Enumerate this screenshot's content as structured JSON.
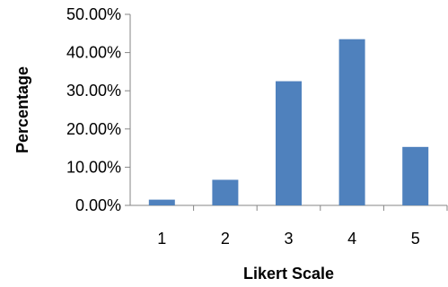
{
  "chart_data": {
    "type": "bar",
    "title": "",
    "xlabel": "Likert Scale",
    "ylabel": "Percentage",
    "categories": [
      "1",
      "2",
      "3",
      "4",
      "5"
    ],
    "values": [
      1.5,
      6.7,
      32.5,
      43.5,
      15.3
    ],
    "ylim": [
      0,
      50
    ],
    "yticks": [
      "0.00%",
      "10.00%",
      "20.00%",
      "30.00%",
      "40.00%",
      "50.00%"
    ],
    "grid": false,
    "legend": "none",
    "bar_color": "#4F81BD"
  }
}
